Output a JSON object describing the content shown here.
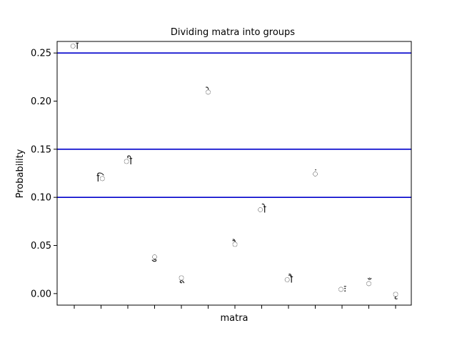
{
  "chart_data": {
    "type": "scatter",
    "title": "Dividing matra into groups",
    "xlabel": "matra",
    "ylabel": "Probability",
    "ylim": [
      -0.012,
      0.262
    ],
    "yticks": [
      "0.00",
      "0.05",
      "0.10",
      "0.15",
      "0.20",
      "0.25"
    ],
    "ytick_values": [
      0.0,
      0.05,
      0.1,
      0.15,
      0.2,
      0.25
    ],
    "grid": false,
    "points": [
      {
        "x": 1,
        "y": 0.258,
        "label": "ा"
      },
      {
        "x": 2,
        "y": 0.12,
        "label": "ि"
      },
      {
        "x": 3,
        "y": 0.138,
        "label": "ी"
      },
      {
        "x": 4,
        "y": 0.039,
        "label": "ु"
      },
      {
        "x": 5,
        "y": 0.017,
        "label": "ू"
      },
      {
        "x": 6,
        "y": 0.21,
        "label": "े"
      },
      {
        "x": 7,
        "y": 0.052,
        "label": "ै"
      },
      {
        "x": 8,
        "y": 0.088,
        "label": "ो"
      },
      {
        "x": 9,
        "y": 0.015,
        "label": "ौ"
      },
      {
        "x": 10,
        "y": 0.125,
        "label": "ं"
      },
      {
        "x": 11,
        "y": 0.005,
        "label": "ः"
      },
      {
        "x": 12,
        "y": 0.011,
        "label": "ँ"
      },
      {
        "x": 13,
        "y": 0.0,
        "label": "ृ"
      }
    ],
    "hlines": [
      {
        "y": 0.25,
        "color": "#0000cc"
      },
      {
        "y": 0.15,
        "color": "#0000cc"
      },
      {
        "y": 0.1,
        "color": "#0000cc"
      }
    ],
    "x_tick_count": 13
  }
}
